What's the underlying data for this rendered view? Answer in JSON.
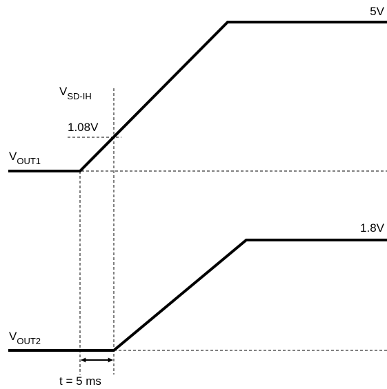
{
  "labels": {
    "vsd_main": "V",
    "vsd_sub": "SD-IH",
    "threshold": "1.08V",
    "vout1_main": "V",
    "vout1_sub": "OUT1",
    "vout1_level": "5V",
    "vout2_main": "V",
    "vout2_sub": "OUT2",
    "vout2_level": "1.8V",
    "delay": "t = 5 ms"
  },
  "colors": {
    "trace": "#000000",
    "background": "#ffffff"
  }
}
